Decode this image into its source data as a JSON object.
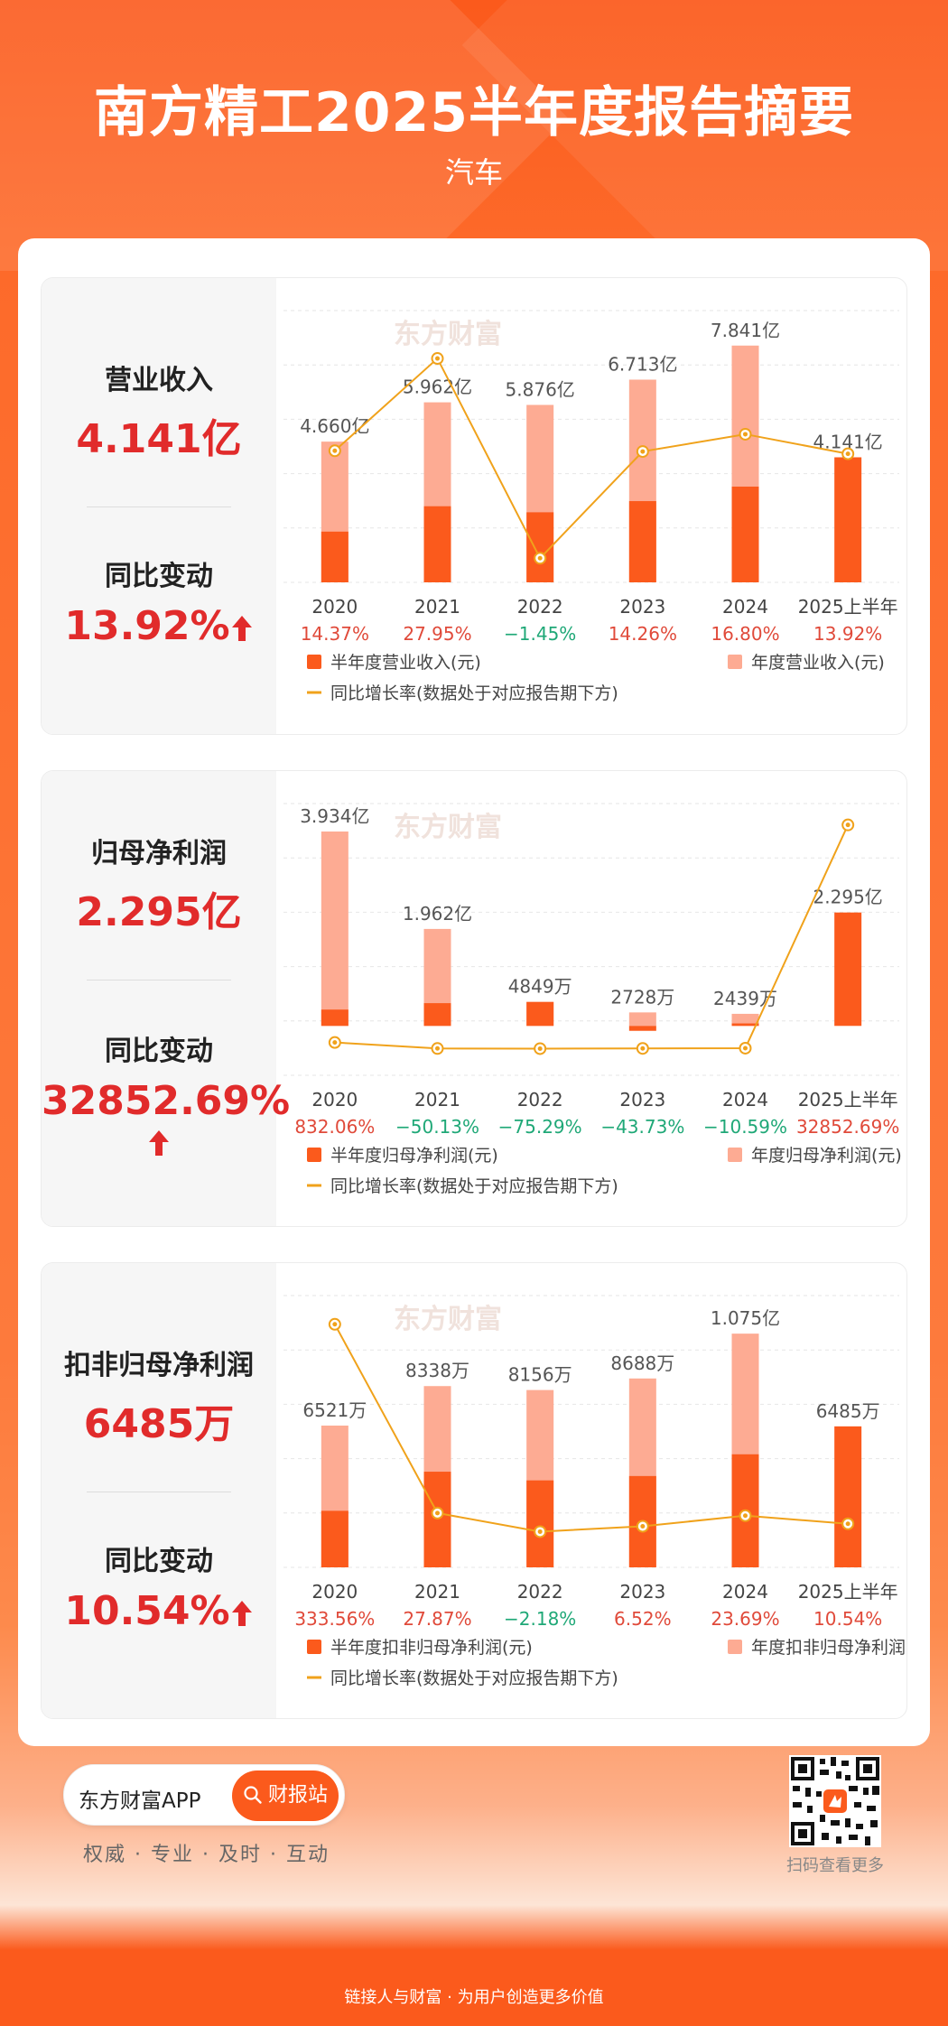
{
  "header": {
    "title": "南方精工2025半年度报告摘要",
    "subtitle": "汽车"
  },
  "watermark": "东方财富",
  "legend_line_label": "同比增长率(数据处于对应报告期下方)",
  "colors": {
    "accent": "#fb5a1c",
    "half_bar": "#fb5a1c",
    "annual_bar": "#fdab93",
    "line": "#f0a21b",
    "positive": "#e04a3a",
    "negative": "#1fa877",
    "value_red": "#e12b2b"
  },
  "panels": [
    {
      "id": "revenue",
      "metric_title": "营业收入",
      "metric_value": "4.141亿",
      "change_title": "同比变动",
      "change_value": "13.92%",
      "change_direction": "up",
      "legend_half": "半年度营业收入(元)",
      "legend_annual": "年度营业收入(元)"
    },
    {
      "id": "net_profit",
      "metric_title": "归母净利润",
      "metric_value": "2.295亿",
      "change_title": "同比变动",
      "change_value": "32852.69%",
      "change_direction": "up",
      "legend_half": "半年度归母净利润(元)",
      "legend_annual": "年度归母净利润(元)"
    },
    {
      "id": "deducted_profit",
      "metric_title": "扣非归母净利润",
      "metric_value": "6485万",
      "change_title": "同比变动",
      "change_value": "10.54%",
      "change_direction": "up",
      "legend_half": "半年度扣非归母净利润(元)",
      "legend_annual": "年度扣非归母净利润(元)"
    }
  ],
  "chart_data": [
    {
      "type": "bar",
      "title": "营业收入",
      "categories": [
        "2020",
        "2021",
        "2022",
        "2023",
        "2024",
        "2025上半年"
      ],
      "series": [
        {
          "name": "半年度营业收入(元)",
          "values": [
            1.68,
            2.52,
            2.32,
            2.69,
            3.17,
            4.141
          ]
        },
        {
          "name": "年度营业收入(元)",
          "values": [
            4.66,
            5.962,
            5.876,
            6.713,
            7.841,
            null
          ]
        },
        {
          "name": "同比增长率(数据处于对应报告期下方)",
          "type": "line",
          "values": [
            14.37,
            27.95,
            -1.45,
            14.26,
            16.8,
            13.92
          ]
        }
      ],
      "bar_labels": [
        "4.660亿",
        "5.962亿",
        "5.876亿",
        "6.713亿",
        "7.841亿",
        "4.141亿"
      ],
      "growth_labels": [
        "14.37%",
        "27.95%",
        "−1.45%",
        "14.26%",
        "16.80%",
        "13.92%"
      ],
      "ylim": [
        0,
        9
      ],
      "line_ylim": [
        -5,
        35
      ]
    },
    {
      "type": "bar",
      "title": "归母净利润",
      "categories": [
        "2020",
        "2021",
        "2022",
        "2023",
        "2024",
        "2025上半年"
      ],
      "series": [
        {
          "name": "半年度归母净利润(元)",
          "values": [
            0.33,
            0.46,
            0.4849,
            -0.1,
            0.05,
            2.295
          ]
        },
        {
          "name": "年度归母净利润(元)",
          "values": [
            3.934,
            1.962,
            0.4849,
            0.2728,
            0.2439,
            null
          ]
        },
        {
          "name": "同比增长率(数据处于对应报告期下方)",
          "type": "line",
          "values": [
            832.06,
            -50.13,
            -75.29,
            -43.73,
            -10.59,
            32852.69
          ]
        }
      ],
      "bar_labels": [
        "3.934亿",
        "1.962亿",
        "4849万",
        "2728万",
        "2439万",
        "2.295亿"
      ],
      "growth_labels": [
        "832.06%",
        "−50.13%",
        "−75.29%",
        "−43.73%",
        "−10.59%",
        "32852.69%"
      ],
      "ylim": [
        -1,
        4.5
      ],
      "line_ylim": [
        -4000,
        36000
      ]
    },
    {
      "type": "bar",
      "title": "扣非归母净利润",
      "categories": [
        "2020",
        "2021",
        "2022",
        "2023",
        "2024",
        "2025上半年"
      ],
      "series": [
        {
          "name": "半年度扣非归母净利润(元)",
          "values": [
            0.26,
            0.44,
            0.4,
            0.42,
            0.52,
            0.6485
          ]
        },
        {
          "name": "年度扣非归母净利润(元)",
          "values": [
            0.6521,
            0.8338,
            0.8156,
            0.8688,
            1.075,
            null
          ]
        },
        {
          "name": "同比增长率(数据处于对应报告期下方)",
          "type": "line",
          "values": [
            333.56,
            27.87,
            -2.18,
            6.52,
            23.69,
            10.54
          ]
        }
      ],
      "bar_labels": [
        "6521万",
        "8338万",
        "8156万",
        "8688万",
        "1.075亿",
        "6485万"
      ],
      "growth_labels": [
        "333.56%",
        "27.87%",
        "−2.18%",
        "6.52%",
        "23.69%",
        "10.54%"
      ],
      "ylim": [
        0,
        1.25
      ],
      "line_ylim": [
        -60,
        380
      ]
    }
  ],
  "footer": {
    "app_name": "东方财富APP",
    "button_label": "财报站",
    "slogan": "权威 · 专业 · 及时 · 互动",
    "qr_caption": "扫码查看更多",
    "bottom_text": "链接人与财富 · 为用户创造更多价值"
  }
}
